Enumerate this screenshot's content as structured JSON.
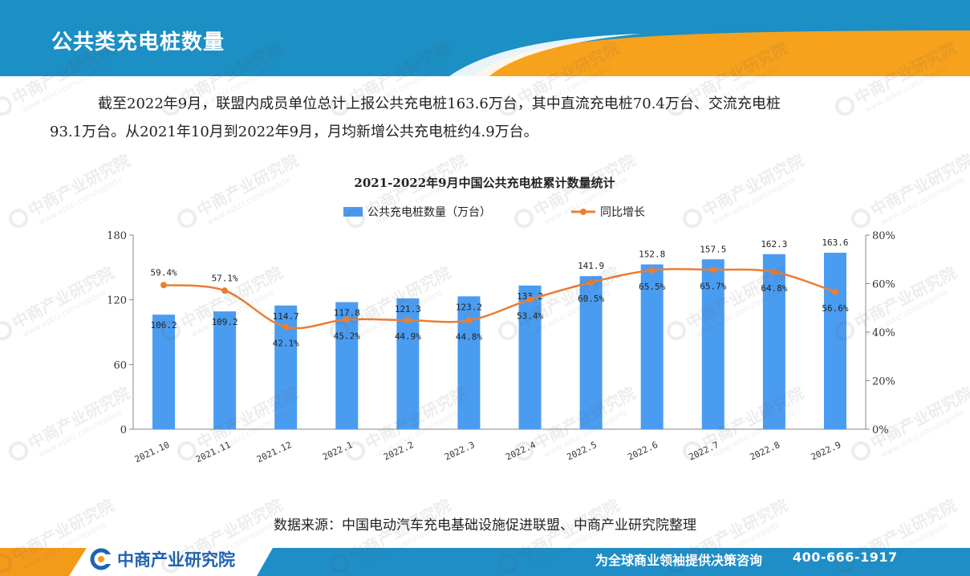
{
  "header": {
    "title": "公共类充电桩数量"
  },
  "intro": {
    "line1": "截至2022年9月，联盟内成员单位总计上报公共充电桩163.6万台，其中直流充电桩70.4万台、交流充电桩",
    "line2": "93.1万台。从2021年10月到2022年9月，月均新增公共充电桩约4.9万台。"
  },
  "chart_data": {
    "type": "bar",
    "title": "2021-2022年9月中国公共充电桩累计数量统计",
    "categories": [
      "2021.10",
      "2021.11",
      "2021.12",
      "2022.1",
      "2022.2",
      "2022.3",
      "2022.4",
      "2022.5",
      "2022.6",
      "2022.7",
      "2022.8",
      "2022.9"
    ],
    "series": [
      {
        "name": "公共充电桩数量（万台）",
        "type": "bar",
        "axis": "left",
        "color": "#4a9cf0",
        "values": [
          106.2,
          109.2,
          114.7,
          117.8,
          121.3,
          123.2,
          133.2,
          141.9,
          152.8,
          157.5,
          162.3,
          163.6
        ],
        "labels": [
          "106.2",
          "109.2",
          "114.7",
          "117.8",
          "121.3",
          "123.2",
          "133.2",
          "141.9",
          "152.8",
          "157.5",
          "162.3",
          "163.6"
        ]
      },
      {
        "name": "同比增长",
        "type": "line",
        "axis": "right",
        "color": "#ed7d31",
        "values": [
          59.4,
          57.1,
          42.1,
          45.2,
          44.9,
          44.8,
          53.4,
          60.5,
          65.5,
          65.7,
          64.8,
          56.6
        ],
        "labels": [
          "59.4%",
          "57.1%",
          "42.1%",
          "45.2%",
          "44.9%",
          "44.8%",
          "53.4%",
          "60.5%",
          "65.5%",
          "65.7%",
          "64.8%",
          "56.6%"
        ]
      }
    ],
    "y_left": {
      "ylim": [
        0,
        180
      ],
      "ticks": [
        "0",
        "60",
        "120",
        "180"
      ]
    },
    "y_right": {
      "ylim": [
        0,
        80
      ],
      "ticks": [
        "0%",
        "20%",
        "40%",
        "60%",
        "80%"
      ]
    },
    "legend_position": "top-center",
    "grid": false
  },
  "source": {
    "text": "数据来源：中国电动汽车充电基础设施促进联盟、中商产业研究院整理"
  },
  "footer": {
    "logo_text": "中商产业研究院",
    "slogan": "为全球商业领袖提供决策咨询",
    "phone": "400-666-1917"
  },
  "watermark": {
    "text": "中商产业研究院",
    "url": "www.askci.com/reports"
  },
  "colors": {
    "header_blue": "#1c8fc4",
    "header_orange": "#f7a21c",
    "footer_blue": "#1f8ec6",
    "footer_orange": "#f49a1b",
    "logo_blue": "#1f63b4"
  }
}
